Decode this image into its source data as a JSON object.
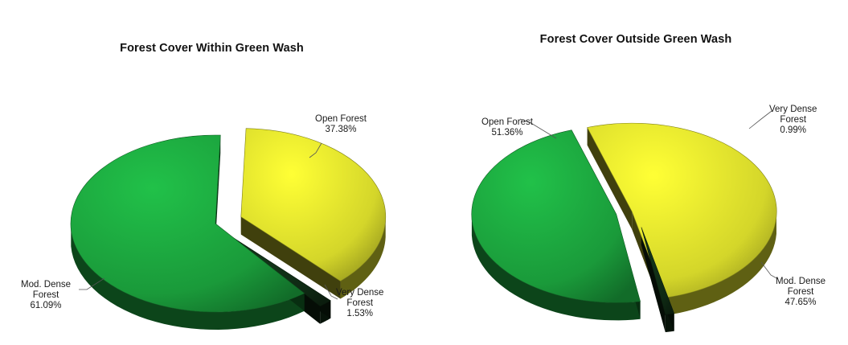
{
  "chart_data": [
    {
      "type": "pie",
      "title": "Forest Cover Within Green Wash",
      "slices": [
        {
          "label": [
            "Open Forest"
          ],
          "value": 37.38,
          "value_text": "37.38%",
          "color": "#d4d62a"
        },
        {
          "label": [
            "Very Dense",
            "Forest"
          ],
          "value": 1.53,
          "value_text": "1.53%",
          "color": "#0f2a14"
        },
        {
          "label": [
            "Mod. Dense",
            "Forest"
          ],
          "value": 61.09,
          "value_text": "61.09%",
          "color": "#1a9a3a"
        }
      ],
      "style": "3d-exploded"
    },
    {
      "type": "pie",
      "title": "Forest Cover Outside Green Wash",
      "slices": [
        {
          "label": [
            "Open Forest"
          ],
          "value": 51.36,
          "value_text": "51.36%",
          "color": "#d4d62a"
        },
        {
          "label": [
            "Very Dense",
            "Forest"
          ],
          "value": 0.99,
          "value_text": "0.99%",
          "color": "#0f2a14"
        },
        {
          "label": [
            "Mod. Dense",
            "Forest"
          ],
          "value": 47.65,
          "value_text": "47.65%",
          "color": "#1a9a3a"
        }
      ],
      "style": "3d-exploded"
    }
  ]
}
